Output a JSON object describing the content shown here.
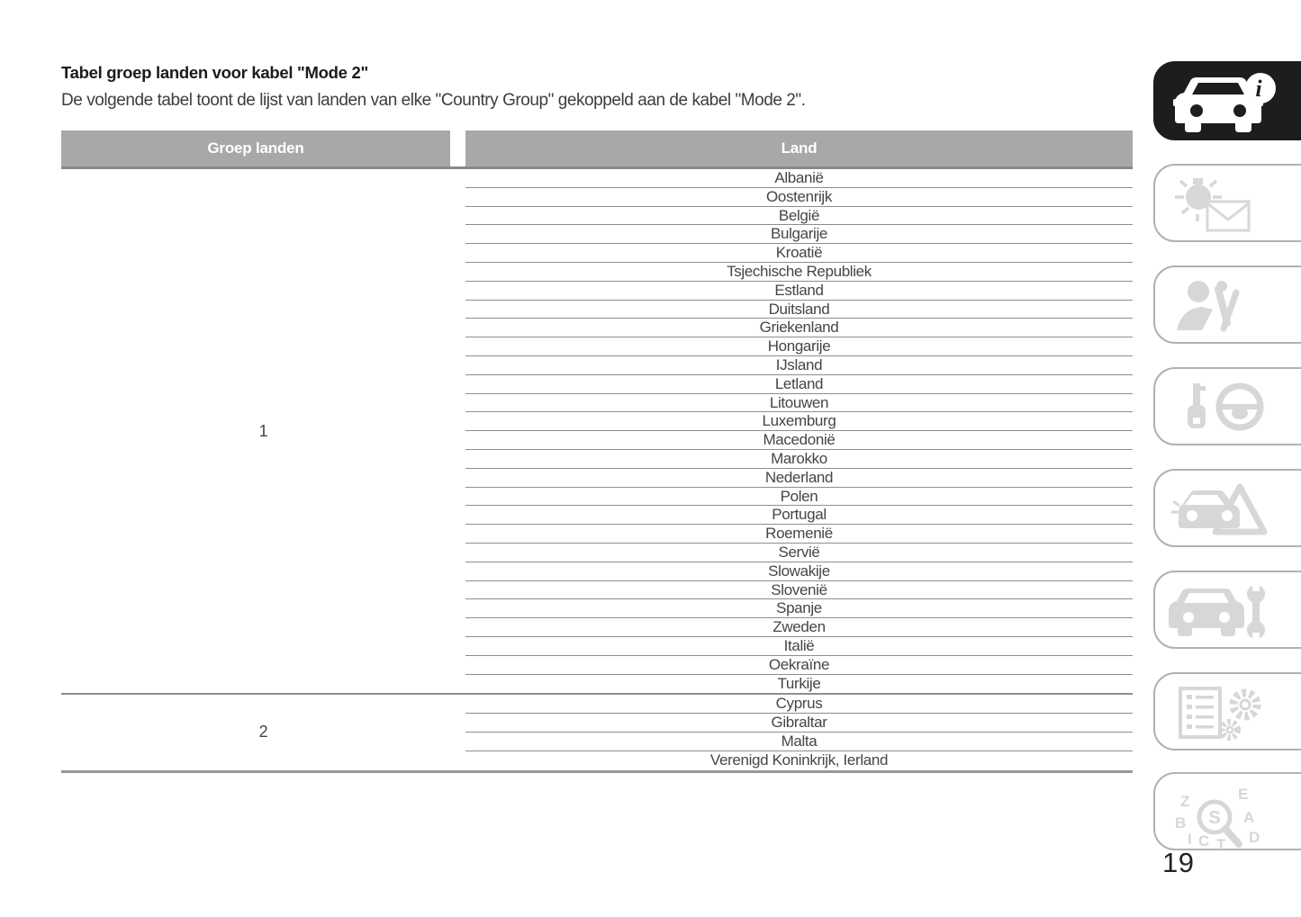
{
  "document": {
    "title": "Tabel groep landen voor kabel \"Mode 2\"",
    "intro": "De volgende tabel toont de lijst van landen van elke \"Country Group\" gekoppeld aan de kabel \"Mode 2\".",
    "page_number": "19"
  },
  "table": {
    "headers": {
      "group": "Groep landen",
      "country": "Land"
    },
    "groups": [
      {
        "group": "1",
        "countries": [
          "Albanië",
          "Oostenrijk",
          "België",
          "Bulgarije",
          "Kroatië",
          "Tsjechische Republiek",
          "Estland",
          "Duitsland",
          "Griekenland",
          "Hongarije",
          "IJsland",
          "Letland",
          "Litouwen",
          "Luxemburg",
          "Macedonië",
          "Marokko",
          "Nederland",
          "Polen",
          "Portugal",
          "Roemenië",
          "Servië",
          "Slowakije",
          "Slovenië",
          "Spanje",
          "Zweden",
          "Italië",
          "Oekraïne",
          "Turkije"
        ]
      },
      {
        "group": "2",
        "countries": [
          "Cyprus",
          "Gibraltar",
          "Malta",
          "Verenigd Koninkrijk, Ierland"
        ]
      }
    ]
  },
  "sidebar": {
    "tabs": [
      {
        "icon": "car-info-icon",
        "active": true
      },
      {
        "icon": "light-envelope-icon",
        "active": false
      },
      {
        "icon": "person-seatbelt-icon",
        "active": false
      },
      {
        "icon": "key-steering-wheel-icon",
        "active": false
      },
      {
        "icon": "car-warning-triangle-icon",
        "active": false
      },
      {
        "icon": "car-wrench-icon",
        "active": false
      },
      {
        "icon": "list-gears-icon",
        "active": false
      },
      {
        "icon": "letters-magnifier-icon",
        "active": false
      }
    ]
  },
  "colors": {
    "header_bg": "#a8a8aa",
    "table_line": "#8e8e90",
    "body_text": "#454547",
    "active_tab": "#1d1d1f",
    "inactive_icon": "#d7d7d9",
    "tab_border": "#b1b1b3"
  }
}
